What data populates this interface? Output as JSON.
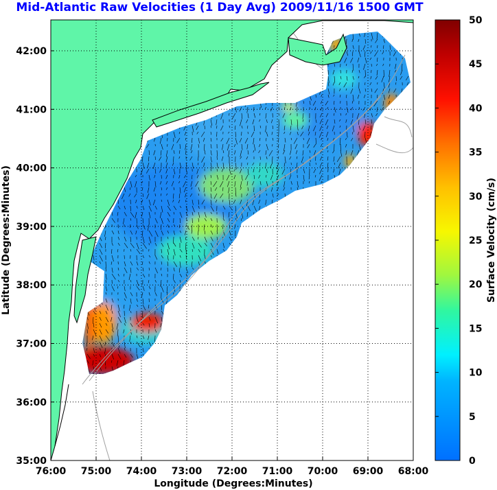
{
  "map": {
    "title": "Mid-Atlantic Raw Velocities (1 Day Avg) 2009/11/16 1500 GMT",
    "x_axis": {
      "label": "Longitude (Degrees:Minutes)",
      "ticks": [
        "76:00",
        "75:00",
        "74:00",
        "73:00",
        "72:00",
        "71:00",
        "70:00",
        "69:00",
        "68:00"
      ]
    },
    "y_axis": {
      "label": "Latitude (Degrees:Minutes)",
      "ticks": [
        "42:00",
        "41:00",
        "40:00",
        "39:00",
        "38:00",
        "37:00",
        "36:00",
        "35:00"
      ]
    },
    "colorbar": {
      "label": "Surface Velocity (cm/s)",
      "ticks": [
        "50",
        "45",
        "40",
        "35",
        "30",
        "25",
        "20",
        "15",
        "10",
        "5",
        "0"
      ]
    },
    "colors": {
      "land": "#5ff5a8",
      "coastline": "#000000",
      "bathymetry": "#a0a0a0",
      "title": "#0000ff",
      "low_speed": "#0066ff",
      "high_speed": "#800000"
    },
    "grid": "dotted"
  }
}
